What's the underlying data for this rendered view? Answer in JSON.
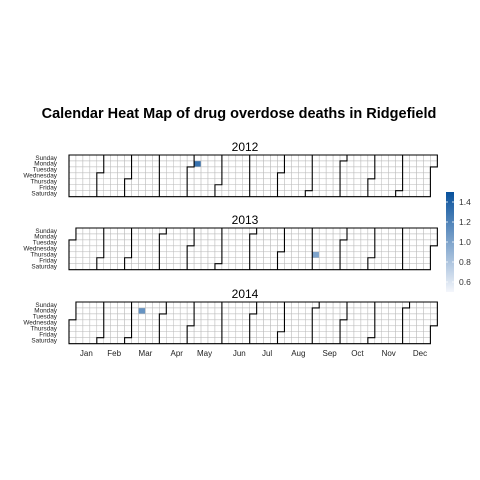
{
  "chart_data": {
    "type": "heatmap",
    "title": "Calendar Heat Map of drug overdose deaths in Ridgefield",
    "panels": [
      {
        "year": "2012",
        "first_weekday": 0,
        "days": 366,
        "values": [
          {
            "date": "2012-05-07",
            "value": 1.3
          }
        ]
      },
      {
        "year": "2013",
        "first_weekday": 2,
        "days": 365,
        "values": [
          {
            "date": "2013-09-05",
            "value": 1.0
          }
        ]
      },
      {
        "year": "2014",
        "first_weekday": 3,
        "days": 365,
        "values": [
          {
            "date": "2014-03-10",
            "value": 1.1
          }
        ]
      }
    ],
    "day_labels": [
      "Sunday",
      "Monday",
      "Tuesday",
      "Wednesday",
      "Thursday",
      "Friday",
      "Saturday"
    ],
    "month_labels": [
      "Jan",
      "Feb",
      "Mar",
      "Apr",
      "May",
      "Jun",
      "Jul",
      "Aug",
      "Sep",
      "Oct",
      "Nov",
      "Dec"
    ],
    "legend": {
      "ticks": [
        1.4,
        1.2,
        1.0,
        0.8,
        0.6
      ],
      "tick_labels": [
        "1.4",
        "1.2",
        "1.0",
        "0.8",
        "0.6"
      ],
      "range": [
        0.5,
        1.5
      ],
      "color_low": "#f4f6fb",
      "color_high": "#08519c",
      "placement": "right"
    }
  }
}
